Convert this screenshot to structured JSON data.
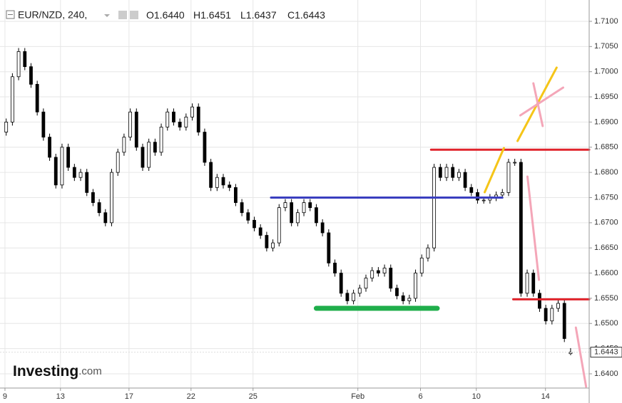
{
  "chart_data": {
    "type": "candlestick",
    "header": {
      "symbol": "EUR/NZD, 240,",
      "fields": [
        {
          "label": "O",
          "value": "1.6440"
        },
        {
          "label": "H",
          "value": "1.6451"
        },
        {
          "label": "L",
          "value": "1.6437"
        },
        {
          "label": "C",
          "value": "1.6443"
        }
      ]
    },
    "watermark": [
      "Investing",
      ".com"
    ],
    "xlim": [
      0,
      190
    ],
    "ylim": [
      1.63717,
      1.71424
    ],
    "xticks": [
      {
        "value": 1.6,
        "label": "9"
      },
      {
        "value": 19.5,
        "label": "13"
      },
      {
        "value": 41.6,
        "label": "17"
      },
      {
        "value": 61.6,
        "label": "22"
      },
      {
        "value": 81.6,
        "label": "25"
      },
      {
        "value": 115.4,
        "label": "Feb"
      },
      {
        "value": 135.6,
        "label": "6"
      },
      {
        "value": 153.6,
        "label": "10"
      },
      {
        "value": 175.9,
        "label": "14"
      }
    ],
    "yticks": [
      {
        "value": 1.64,
        "label": "1.6400"
      },
      {
        "value": 1.645,
        "label": "1.6450"
      },
      {
        "value": 1.65,
        "label": "1.6500"
      },
      {
        "value": 1.655,
        "label": "1.6550"
      },
      {
        "value": 1.66,
        "label": "1.6600"
      },
      {
        "value": 1.665,
        "label": "1.6650"
      },
      {
        "value": 1.67,
        "label": "1.6700"
      },
      {
        "value": 1.675,
        "label": "1.6750"
      },
      {
        "value": 1.68,
        "label": "1.6800"
      },
      {
        "value": 1.685,
        "label": "1.6850"
      },
      {
        "value": 1.69,
        "label": "1.6900"
      },
      {
        "value": 1.695,
        "label": "1.6950"
      },
      {
        "value": 1.7,
        "label": "1.7000"
      },
      {
        "value": 1.705,
        "label": "1.7050"
      },
      {
        "value": 1.71,
        "label": "1.7100"
      }
    ],
    "grid": true,
    "x": [
      2,
      4,
      6,
      8,
      10,
      12,
      14,
      16,
      18,
      20,
      22,
      24,
      26,
      28,
      30,
      32,
      34,
      36,
      38,
      40,
      42,
      44,
      46,
      48,
      50,
      52,
      54,
      56,
      58,
      60,
      62,
      64,
      66,
      68,
      70,
      72,
      74,
      76,
      78,
      80,
      82,
      84,
      86,
      88,
      90,
      92,
      94,
      96,
      98,
      100,
      102,
      104,
      106,
      108,
      110,
      112,
      114,
      116,
      118,
      120,
      122,
      124,
      126,
      128,
      130,
      132,
      134,
      136,
      138,
      140,
      142,
      144,
      146,
      148,
      150,
      152,
      154,
      156,
      158,
      160,
      162,
      164,
      166,
      168,
      170,
      172,
      174,
      176,
      178,
      180,
      182,
      184
    ],
    "open": [
      1.688,
      1.69,
      1.699,
      1.704,
      1.701,
      1.6975,
      1.692,
      1.687,
      1.683,
      1.6775,
      1.685,
      1.681,
      1.679,
      1.68,
      1.676,
      1.674,
      1.672,
      1.67,
      1.68,
      1.684,
      1.687,
      1.692,
      1.685,
      1.681,
      1.686,
      1.684,
      1.689,
      1.692,
      1.69,
      1.689,
      1.691,
      1.693,
      1.688,
      1.682,
      1.677,
      1.679,
      1.6775,
      1.677,
      1.674,
      1.672,
      1.6705,
      1.669,
      1.6675,
      1.665,
      1.666,
      1.673,
      1.674,
      1.67,
      1.672,
      1.674,
      1.673,
      1.67,
      1.668,
      1.662,
      1.66,
      1.656,
      1.6545,
      1.656,
      1.657,
      1.659,
      1.6605,
      1.66,
      1.661,
      1.657,
      1.6555,
      1.6545,
      1.655,
      1.66,
      1.663,
      1.665,
      1.681,
      1.679,
      1.681,
      1.679,
      1.68,
      1.677,
      1.676,
      1.6745,
      1.6745,
      1.675,
      1.6755,
      1.676,
      1.682,
      1.682,
      1.656,
      1.66,
      1.656,
      1.653,
      1.6505,
      1.653,
      1.654,
      1.644
    ],
    "high": [
      1.6907,
      1.6997,
      1.7047,
      1.7047,
      1.7017,
      1.6982,
      1.6927,
      1.6877,
      1.6837,
      1.6857,
      1.6857,
      1.6817,
      1.6807,
      1.6807,
      1.6767,
      1.6747,
      1.6727,
      1.6807,
      1.6847,
      1.6877,
      1.6927,
      1.6927,
      1.6857,
      1.6867,
      1.6867,
      1.6897,
      1.6927,
      1.6927,
      1.6907,
      1.6917,
      1.6937,
      1.6937,
      1.6887,
      1.6827,
      1.6797,
      1.6797,
      1.6782,
      1.6777,
      1.6747,
      1.6727,
      1.6712,
      1.6697,
      1.6682,
      1.6667,
      1.6737,
      1.6747,
      1.6747,
      1.6727,
      1.6747,
      1.6747,
      1.6737,
      1.6707,
      1.6687,
      1.6627,
      1.6607,
      1.6567,
      1.6567,
      1.6577,
      1.6597,
      1.6612,
      1.6612,
      1.6617,
      1.6617,
      1.6577,
      1.6562,
      1.6557,
      1.6607,
      1.6637,
      1.6657,
      1.6817,
      1.6817,
      1.6817,
      1.6817,
      1.6807,
      1.6807,
      1.6777,
      1.6767,
      1.6752,
      1.6757,
      1.6762,
      1.6767,
      1.6827,
      1.6827,
      1.6827,
      1.6607,
      1.6607,
      1.6567,
      1.6537,
      1.6537,
      1.6547,
      1.6547,
      1.6451
    ],
    "low": [
      1.6873,
      1.6893,
      1.6983,
      1.7003,
      1.6968,
      1.6913,
      1.6863,
      1.6823,
      1.6768,
      1.6768,
      1.6803,
      1.6783,
      1.6783,
      1.6753,
      1.6733,
      1.6713,
      1.6693,
      1.6693,
      1.6793,
      1.6833,
      1.6863,
      1.6843,
      1.6803,
      1.6803,
      1.6833,
      1.6833,
      1.6883,
      1.6893,
      1.6883,
      1.6883,
      1.6903,
      1.6873,
      1.6813,
      1.6763,
      1.6763,
      1.6768,
      1.6763,
      1.6733,
      1.6713,
      1.6698,
      1.6683,
      1.6668,
      1.6643,
      1.6643,
      1.6653,
      1.6723,
      1.6693,
      1.6693,
      1.6713,
      1.6723,
      1.6693,
      1.6673,
      1.6613,
      1.6593,
      1.6553,
      1.6538,
      1.6538,
      1.6553,
      1.6563,
      1.6583,
      1.6593,
      1.6593,
      1.6563,
      1.6548,
      1.6538,
      1.6538,
      1.6543,
      1.6593,
      1.6623,
      1.6643,
      1.6783,
      1.6783,
      1.6783,
      1.6783,
      1.6763,
      1.6753,
      1.6738,
      1.6738,
      1.6738,
      1.6743,
      1.6748,
      1.6753,
      1.6813,
      1.6553,
      1.6553,
      1.6553,
      1.6523,
      1.6498,
      1.6498,
      1.6523,
      1.6463,
      1.6437
    ],
    "close": [
      1.69,
      1.699,
      1.704,
      1.701,
      1.6975,
      1.692,
      1.687,
      1.683,
      1.6775,
      1.685,
      1.681,
      1.679,
      1.68,
      1.676,
      1.674,
      1.672,
      1.67,
      1.68,
      1.684,
      1.687,
      1.692,
      1.685,
      1.681,
      1.686,
      1.684,
      1.689,
      1.692,
      1.69,
      1.689,
      1.691,
      1.693,
      1.688,
      1.682,
      1.677,
      1.679,
      1.6775,
      1.677,
      1.674,
      1.672,
      1.6705,
      1.669,
      1.6675,
      1.665,
      1.666,
      1.673,
      1.674,
      1.67,
      1.672,
      1.674,
      1.673,
      1.67,
      1.668,
      1.662,
      1.66,
      1.656,
      1.6545,
      1.656,
      1.657,
      1.659,
      1.6605,
      1.66,
      1.661,
      1.657,
      1.6555,
      1.6545,
      1.655,
      1.66,
      1.663,
      1.665,
      1.681,
      1.679,
      1.681,
      1.679,
      1.68,
      1.677,
      1.676,
      1.6745,
      1.6745,
      1.675,
      1.6755,
      1.676,
      1.682,
      1.682,
      1.656,
      1.66,
      1.656,
      1.653,
      1.6505,
      1.653,
      1.654,
      1.647,
      1.6443
    ],
    "last_price_label": "1.6443",
    "drawings": [
      {
        "color": "#3a3fbf",
        "x": [
          87.4,
          162
        ],
        "y": [
          1.675,
          1.675
        ]
      },
      {
        "color": "#e0232b",
        "x": [
          139,
          190
        ],
        "y": [
          1.6845,
          1.6845
        ]
      },
      {
        "color": "#e0232b",
        "x": [
          165.5,
          190
        ],
        "y": [
          1.6548,
          1.6548
        ]
      },
      {
        "color": "#1fae4b",
        "x": [
          102,
          141
        ],
        "y": [
          1.653,
          1.653
        ]
      },
      {
        "color": "#f5c518",
        "x": [
          156.3,
          162.5
        ],
        "y": [
          1.67606,
          1.68484
        ]
      },
      {
        "color": "#f5c518",
        "x": [
          166.9,
          179.5
        ],
        "y": [
          1.68624,
          1.70081
        ]
      },
      {
        "color": "#f4a6b8",
        "x": [
          167.8,
          181.6
        ],
        "y": [
          1.69133,
          1.69685
        ]
      },
      {
        "color": "#f4a6b8",
        "x": [
          172,
          175
        ],
        "y": [
          1.6977,
          1.68921
        ]
      },
      {
        "color": "#f4a6b8",
        "x": [
          170.1,
          173.8
        ],
        "y": [
          1.67917,
          1.65866
        ]
      },
      {
        "color": "#f4a6b8",
        "x": [
          185.7,
          189
        ],
        "y": [
          1.64919,
          1.63745
        ]
      }
    ]
  }
}
